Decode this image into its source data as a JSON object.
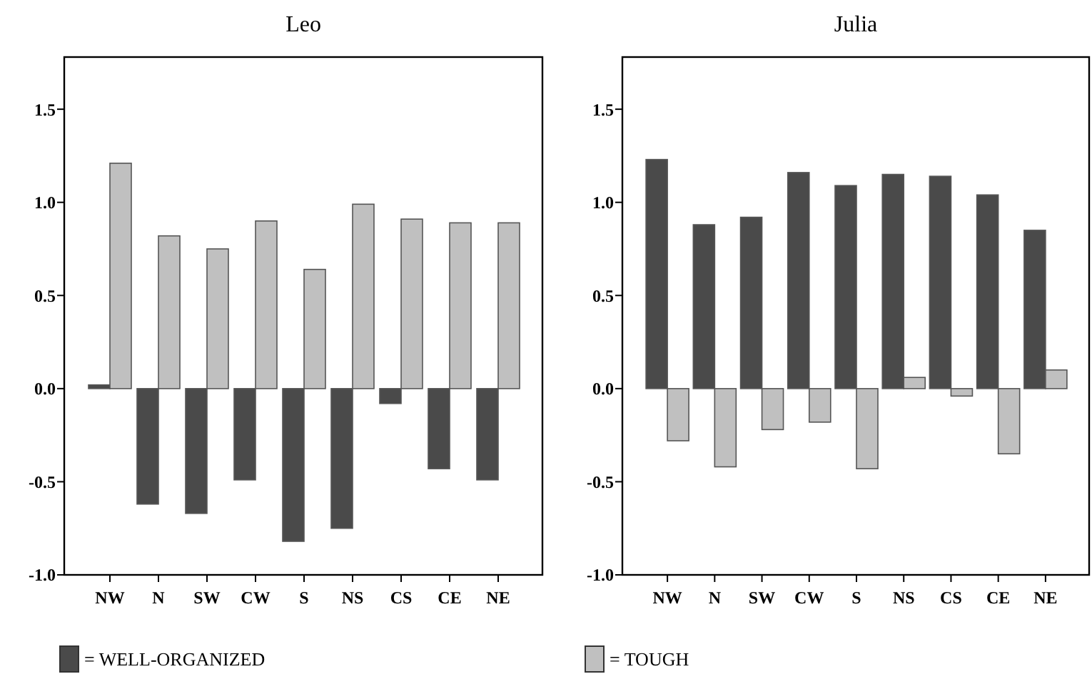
{
  "chart_data": [
    {
      "type": "bar",
      "title": "Leo",
      "categories": [
        "NW",
        "N",
        "SW",
        "CW",
        "S",
        "NS",
        "CS",
        "CE",
        "NE"
      ],
      "series": [
        {
          "name": "= WELL-ORGANIZED",
          "color": "#4a4a4a",
          "values": [
            0.02,
            -0.62,
            -0.67,
            -0.49,
            -0.82,
            -0.75,
            -0.08,
            -0.43,
            -0.49
          ]
        },
        {
          "name": "= TOUGH",
          "color": "#c0c0c0",
          "values": [
            1.21,
            0.82,
            0.75,
            0.9,
            0.64,
            0.99,
            0.91,
            0.89,
            0.89
          ]
        }
      ],
      "ylim": [
        -1.0,
        1.78
      ],
      "yticks": [
        {
          "value": -1,
          "label": "-1.0"
        },
        {
          "value": -0.5,
          "label": "-0.5"
        },
        {
          "value": 0,
          "label": "0.0"
        },
        {
          "value": 0.5,
          "label": "0.5"
        },
        {
          "value": 1,
          "label": "1.0"
        },
        {
          "value": 1.5,
          "label": "1.5"
        }
      ],
      "grid": false,
      "legend": "bottom"
    },
    {
      "type": "bar",
      "title": "Julia",
      "categories": [
        "NW",
        "N",
        "SW",
        "CW",
        "S",
        "NS",
        "CS",
        "CE",
        "NE"
      ],
      "series": [
        {
          "color": "#4a4a4a",
          "values": [
            1.23,
            0.88,
            0.92,
            1.16,
            1.09,
            1.15,
            1.14,
            1.04,
            0.85
          ]
        },
        {
          "color": "#c0c0c0",
          "values": [
            -0.28,
            -0.42,
            -0.22,
            -0.18,
            -0.43,
            0.06,
            -0.04,
            -0.35,
            0.1
          ]
        }
      ],
      "ylim": [
        -1.0,
        1.78
      ],
      "yticks": [
        {
          "value": -1,
          "label": "-1.0"
        },
        {
          "value": -0.5,
          "label": "-0.5"
        },
        {
          "value": 0,
          "label": "0.0"
        },
        {
          "value": 0.5,
          "label": "0.5"
        },
        {
          "value": 1,
          "label": "1.0"
        },
        {
          "value": 1.5,
          "label": "1.5"
        }
      ],
      "grid": false
    }
  ]
}
